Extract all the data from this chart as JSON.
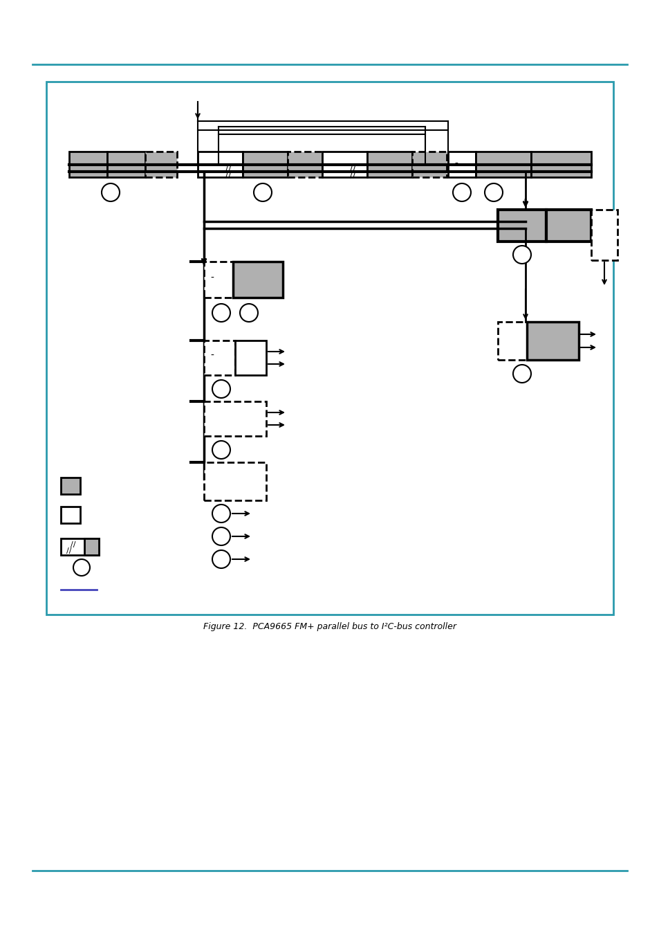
{
  "page_bg": "#ffffff",
  "teal": "#2a9aad",
  "gray": "#b0b0b0",
  "black": "#000000",
  "blue": "#4444bb",
  "caption": "Figure 12.  PCA9665 FM+ parallel bus to I²C-bus controller"
}
